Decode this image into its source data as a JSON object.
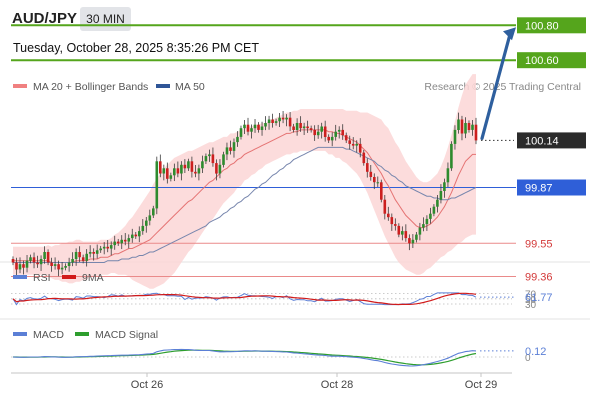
{
  "header": {
    "symbol": "AUD/JPY",
    "timeframe": "30 MIN",
    "timestamp": "Tuesday, October 28, 2025 8:35:26 PM CET"
  },
  "main_legend": {
    "items": [
      {
        "label": "MA 20 + Bollinger Bands",
        "color": "#f08080"
      },
      {
        "label": "MA 50",
        "color": "#2f5597"
      }
    ],
    "attribution": "Research © 2025 Trading Central"
  },
  "colors": {
    "bull": "#2e8b2e",
    "bear": "#cc1f1f",
    "target": "#55a51c",
    "pivot": "#2f5fd8",
    "support": "#ea8a8a",
    "arrow": "#2e5f9e",
    "band_fill": "#fbd6d6"
  },
  "chart_data": [
    {
      "type": "candlestick",
      "title": "AUD/JPY",
      "x_labels": [
        "Oct 26",
        "Oct 28",
        "Oct 29"
      ],
      "y_range": [
        99.2,
        100.9
      ],
      "levels": [
        {
          "value": 100.8,
          "label": "100.80",
          "kind": "resistance"
        },
        {
          "value": 100.6,
          "label": "100.60",
          "kind": "resistance"
        },
        {
          "value": 100.14,
          "label": "100.14",
          "kind": "last_price"
        },
        {
          "value": 99.87,
          "label": "99.87",
          "kind": "pivot"
        },
        {
          "value": 99.55,
          "label": "99.55",
          "kind": "support"
        },
        {
          "value": 99.36,
          "label": "99.36",
          "kind": "support"
        }
      ],
      "candle_close": [
        99.44,
        99.4,
        99.43,
        99.41,
        99.45,
        99.47,
        99.44,
        99.43,
        99.46,
        99.5,
        99.44,
        99.42,
        99.43,
        99.4,
        99.41,
        99.42,
        99.44,
        99.46,
        99.5,
        99.47,
        99.45,
        99.49,
        99.5,
        99.49,
        99.51,
        99.52,
        99.53,
        99.52,
        99.54,
        99.56,
        99.55,
        99.57,
        99.56,
        99.58,
        99.6,
        99.59,
        99.62,
        99.65,
        99.68,
        99.71,
        99.75,
        100.02,
        99.95,
        99.98,
        99.92,
        99.94,
        99.98,
        99.95,
        100.0,
        99.98,
        100.02,
        99.96,
        99.95,
        99.98,
        100.02,
        100.05,
        100.06,
        100.01,
        99.95,
        100.0,
        100.06,
        100.1,
        100.08,
        100.13,
        100.16,
        100.21,
        100.23,
        100.19,
        100.21,
        100.23,
        100.2,
        100.22,
        100.24,
        100.26,
        100.24,
        100.25,
        100.27,
        100.26,
        100.27,
        100.22,
        100.2,
        100.24,
        100.21,
        100.22,
        100.21,
        100.2,
        100.17,
        100.19,
        100.22,
        100.16,
        100.14,
        100.16,
        100.19,
        100.2,
        100.17,
        100.14,
        100.12,
        100.11,
        100.12,
        100.07,
        100.01,
        99.96,
        99.93,
        99.9,
        99.9,
        99.8,
        99.72,
        99.7,
        99.66,
        99.65,
        99.6,
        99.62,
        99.58,
        99.55,
        99.57,
        99.6,
        99.64,
        99.66,
        99.69,
        99.72,
        99.76,
        99.8,
        99.85,
        99.9,
        99.98,
        100.12,
        100.2,
        100.26,
        100.18,
        100.24,
        100.2,
        100.23,
        100.14
      ],
      "ma20": [
        99.45,
        99.45,
        99.45,
        99.45,
        99.45,
        99.45,
        99.45,
        99.45,
        99.45,
        99.45,
        99.45,
        99.44,
        99.44,
        99.44,
        99.44,
        99.44,
        99.44,
        99.44,
        99.45,
        99.45,
        99.45,
        99.45,
        99.46,
        99.46,
        99.46,
        99.47,
        99.47,
        99.47,
        99.48,
        99.49,
        99.49,
        99.5,
        99.51,
        99.52,
        99.52,
        99.53,
        99.54,
        99.55,
        99.56,
        99.57,
        99.59,
        99.61,
        99.63,
        99.65,
        99.67,
        99.69,
        99.71,
        99.73,
        99.75,
        99.77,
        99.79,
        99.8,
        99.82,
        99.84,
        99.86,
        99.88,
        99.9,
        99.91,
        99.93,
        99.95,
        99.97,
        99.98,
        100.0,
        100.01,
        100.03,
        100.04,
        100.06,
        100.07,
        100.08,
        100.09,
        100.1,
        100.11,
        100.12,
        100.13,
        100.14,
        100.15,
        100.16,
        100.17,
        100.18,
        100.18,
        100.19,
        100.19,
        100.2,
        100.2,
        100.2,
        100.2,
        100.2,
        100.2,
        100.2,
        100.2,
        100.19,
        100.19,
        100.18,
        100.18,
        100.17,
        100.16,
        100.15,
        100.14,
        100.13,
        100.11,
        100.09,
        100.07,
        100.04,
        100.01,
        99.98,
        99.95,
        99.91,
        99.88,
        99.84,
        99.8,
        99.77,
        99.74,
        99.71,
        99.69,
        99.67,
        99.65,
        99.64,
        99.64,
        99.65,
        99.66,
        99.68,
        99.7,
        99.73,
        99.76,
        99.8,
        99.84,
        99.89,
        99.94,
        99.98,
        100.02,
        100.04,
        100.06,
        100.06
      ],
      "ma50": [
        99.44,
        99.44,
        99.44,
        99.44,
        99.44,
        99.44,
        99.44,
        99.44,
        99.44,
        99.44,
        99.44,
        99.44,
        99.44,
        99.44,
        99.44,
        99.44,
        99.44,
        99.44,
        99.44,
        99.44,
        99.44,
        99.44,
        99.44,
        99.44,
        99.44,
        99.44,
        99.44,
        99.45,
        99.45,
        99.45,
        99.45,
        99.46,
        99.46,
        99.46,
        99.47,
        99.47,
        99.48,
        99.48,
        99.49,
        99.5,
        99.5,
        99.51,
        99.52,
        99.53,
        99.54,
        99.55,
        99.56,
        99.57,
        99.58,
        99.59,
        99.6,
        99.61,
        99.62,
        99.63,
        99.64,
        99.65,
        99.67,
        99.68,
        99.69,
        99.7,
        99.72,
        99.73,
        99.75,
        99.76,
        99.78,
        99.79,
        99.81,
        99.82,
        99.84,
        99.86,
        99.87,
        99.89,
        99.9,
        99.92,
        99.94,
        99.95,
        99.97,
        99.98,
        100.0,
        100.01,
        100.03,
        100.04,
        100.05,
        100.06,
        100.07,
        100.08,
        100.09,
        100.1,
        100.1,
        100.1,
        100.1,
        100.1,
        100.1,
        100.1,
        100.1,
        100.09,
        100.09,
        100.08,
        100.07,
        100.06,
        100.05,
        100.04,
        100.03,
        100.02,
        100.0,
        99.99,
        99.97,
        99.96,
        99.94,
        99.93,
        99.91,
        99.9,
        99.88,
        99.87,
        99.86,
        99.85,
        99.84,
        99.83,
        99.82,
        99.82,
        99.81,
        99.81,
        99.8,
        99.8,
        99.8,
        99.81,
        99.81,
        99.82,
        99.83,
        99.84,
        99.85,
        99.86,
        99.87
      ],
      "bb_width": [
        0.08,
        0.08,
        0.08,
        0.08,
        0.08,
        0.08,
        0.08,
        0.08,
        0.08,
        0.08,
        0.09,
        0.09,
        0.1,
        0.1,
        0.11,
        0.11,
        0.12,
        0.12,
        0.12,
        0.12,
        0.11,
        0.11,
        0.1,
        0.1,
        0.1,
        0.1,
        0.1,
        0.1,
        0.1,
        0.11,
        0.12,
        0.13,
        0.14,
        0.16,
        0.18,
        0.2,
        0.22,
        0.24,
        0.26,
        0.28,
        0.3,
        0.31,
        0.32,
        0.33,
        0.33,
        0.33,
        0.33,
        0.32,
        0.31,
        0.3,
        0.29,
        0.28,
        0.27,
        0.26,
        0.25,
        0.24,
        0.23,
        0.22,
        0.21,
        0.2,
        0.19,
        0.18,
        0.18,
        0.17,
        0.16,
        0.16,
        0.15,
        0.15,
        0.14,
        0.14,
        0.13,
        0.13,
        0.12,
        0.12,
        0.12,
        0.12,
        0.12,
        0.12,
        0.12,
        0.12,
        0.12,
        0.12,
        0.12,
        0.12,
        0.12,
        0.12,
        0.12,
        0.12,
        0.12,
        0.12,
        0.13,
        0.13,
        0.14,
        0.14,
        0.15,
        0.15,
        0.16,
        0.17,
        0.18,
        0.19,
        0.21,
        0.23,
        0.25,
        0.27,
        0.29,
        0.31,
        0.32,
        0.33,
        0.33,
        0.33,
        0.33,
        0.32,
        0.31,
        0.3,
        0.29,
        0.28,
        0.27,
        0.26,
        0.25,
        0.25,
        0.25,
        0.25,
        0.26,
        0.28,
        0.3,
        0.33,
        0.36,
        0.39,
        0.42,
        0.44,
        0.45,
        0.46,
        0.46
      ],
      "projection": {
        "from": 100.14,
        "to": 100.8
      }
    },
    {
      "type": "line",
      "legend": [
        "RSI",
        "9MA"
      ],
      "series": [
        {
          "name": "RSI",
          "color": "#5b7fd6",
          "last_label": "61.77"
        },
        {
          "name": "9MA",
          "color": "#d11a1a"
        }
      ],
      "y_ticks": [
        "70",
        "50",
        "30"
      ],
      "y_range": [
        20,
        80
      ]
    },
    {
      "type": "line",
      "legend": [
        "MACD",
        "MACD Signal"
      ],
      "series": [
        {
          "name": "MACD",
          "color": "#5b7fd6",
          "last_label": "0.12"
        },
        {
          "name": "MACD Signal",
          "color": "#2e9e2e"
        }
      ],
      "y_ticks": [
        "0"
      ]
    }
  ],
  "x_axis": {
    "labels": [
      "Oct 26",
      "Oct 28",
      "Oct 29"
    ]
  }
}
